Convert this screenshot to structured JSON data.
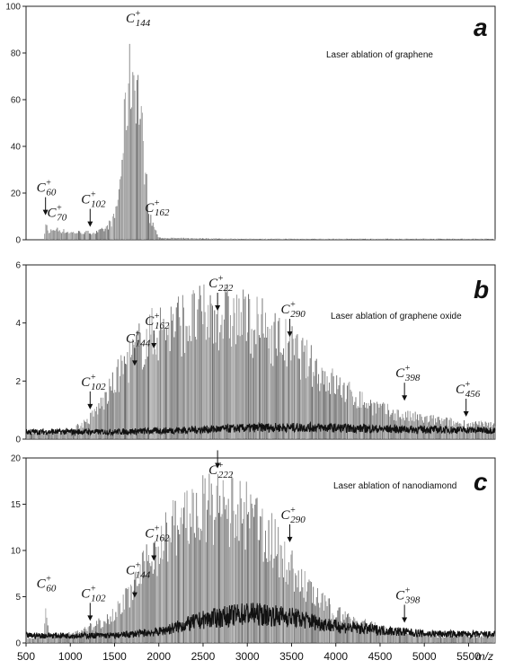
{
  "chart_data": [
    {
      "type": "bar",
      "panel_letter": "a",
      "caption": "Laser ablation of graphene",
      "ylim": [
        0,
        100
      ],
      "yticks": [
        0,
        20,
        40,
        60,
        80,
        100
      ],
      "xlim": [
        500,
        5800
      ],
      "envelope": {
        "x": [
          500,
          700,
          720,
          760,
          800,
          1000,
          1200,
          1300,
          1400,
          1500,
          1560,
          1600,
          1650,
          1700,
          1750,
          1800,
          1850,
          1900,
          1940,
          2000,
          3000,
          5800
        ],
        "y": [
          0,
          0,
          9,
          3,
          6,
          4,
          4,
          4,
          6,
          12,
          30,
          55,
          82,
          92,
          88,
          65,
          35,
          12,
          8,
          1,
          0.5,
          0.5
        ]
      },
      "annotations": [
        {
          "main": "C",
          "sup": "+",
          "sub": "60",
          "x": 720,
          "y": 9,
          "arrow": true
        },
        {
          "main": "C",
          "sup": "+",
          "sub": "70",
          "x": 840,
          "y": 6,
          "arrow": false
        },
        {
          "main": "C",
          "sup": "+",
          "sub": "102",
          "x": 1224,
          "y": 4,
          "arrow": true
        },
        {
          "main": "C",
          "sup": "+",
          "sub": "144",
          "x": 1728,
          "y": 92,
          "arrow": false
        },
        {
          "main": "C",
          "sup": "+",
          "sub": "162",
          "x": 1944,
          "y": 8,
          "arrow": false
        }
      ]
    },
    {
      "type": "bar",
      "panel_letter": "b",
      "caption": "Laser ablation of graphene oxide",
      "ylim": [
        0,
        6
      ],
      "yticks": [
        0,
        2,
        4,
        6
      ],
      "xlim": [
        500,
        5800
      ],
      "envelope": {
        "x": [
          500,
          1000,
          1200,
          1400,
          1600,
          1800,
          2000,
          2200,
          2400,
          2600,
          2700,
          2800,
          3000,
          3200,
          3400,
          3600,
          3800,
          4000,
          4200,
          4400,
          4600,
          4800,
          5000,
          5200,
          5400,
          5800
        ],
        "y": [
          0.3,
          0.4,
          0.8,
          1.8,
          3.2,
          4.2,
          4.8,
          5.1,
          5.3,
          5.4,
          5.5,
          5.4,
          5.2,
          4.8,
          4.3,
          3.7,
          3.0,
          2.4,
          1.9,
          1.5,
          1.2,
          1.0,
          0.9,
          0.8,
          0.7,
          0.6
        ]
      },
      "baseline": {
        "x": [
          500,
          1500,
          2200,
          2700,
          3200,
          3800,
          4500,
          5800
        ],
        "y": [
          0.25,
          0.25,
          0.3,
          0.35,
          0.4,
          0.4,
          0.35,
          0.3
        ]
      },
      "annotations": [
        {
          "main": "C",
          "sup": "+",
          "sub": "102",
          "x": 1224,
          "y": 0.9,
          "arrow": true
        },
        {
          "main": "C",
          "sup": "+",
          "sub": "144",
          "x": 1728,
          "y": 2.4,
          "arrow": true
        },
        {
          "main": "C",
          "sup": "+",
          "sub": "162",
          "x": 1944,
          "y": 3.0,
          "arrow": true
        },
        {
          "main": "C",
          "sup": "+",
          "sub": "222",
          "x": 2664,
          "y": 4.3,
          "arrow": true
        },
        {
          "main": "C",
          "sup": "+",
          "sub": "290",
          "x": 3480,
          "y": 3.4,
          "arrow": true
        },
        {
          "main": "C",
          "sup": "+",
          "sub": "398",
          "x": 4776,
          "y": 1.2,
          "arrow": true
        },
        {
          "main": "C",
          "sup": "+",
          "sub": "456",
          "x": 5472,
          "y": 0.65,
          "arrow": true
        }
      ]
    },
    {
      "type": "bar",
      "panel_letter": "c",
      "caption": "Laser ablation of nanodiamond",
      "ylim": [
        0,
        20
      ],
      "yticks": [
        0,
        5,
        10,
        15,
        20
      ],
      "xlim": [
        500,
        5800
      ],
      "xticks": [
        "500",
        "1000",
        "1500",
        "2000",
        "2500",
        "3000",
        "3500",
        "4000",
        "4500",
        "5000",
        "5500"
      ],
      "xunit": "m/z",
      "envelope": {
        "x": [
          500,
          700,
          720,
          760,
          1000,
          1200,
          1400,
          1600,
          1800,
          2000,
          2200,
          2400,
          2600,
          2700,
          2800,
          2900,
          3000,
          3200,
          3400,
          3600,
          3800,
          4000,
          4200,
          4400,
          4600,
          4800,
          5000,
          5200,
          5800
        ],
        "y": [
          0.8,
          0.8,
          5,
          1,
          1.2,
          2,
          3.2,
          5.5,
          9.5,
          13.5,
          16.5,
          18,
          18.5,
          18.6,
          18.5,
          18,
          17.5,
          15.5,
          12,
          8.5,
          6,
          4.2,
          3.2,
          2.4,
          1.8,
          1.4,
          1.2,
          1.0,
          0.9
        ]
      },
      "baseline": {
        "x": [
          500,
          1500,
          2000,
          2500,
          3000,
          3500,
          4000,
          5000,
          5800
        ],
        "y": [
          0.8,
          0.8,
          1.2,
          2.5,
          3.2,
          2.8,
          1.8,
          1.0,
          0.9
        ]
      },
      "annotations": [
        {
          "main": "C",
          "sup": "+",
          "sub": "60",
          "x": 720,
          "y": 5,
          "arrow": false
        },
        {
          "main": "C",
          "sup": "+",
          "sub": "102",
          "x": 1224,
          "y": 2.0,
          "arrow": true
        },
        {
          "main": "C",
          "sup": "+",
          "sub": "144",
          "x": 1728,
          "y": 4.5,
          "arrow": true
        },
        {
          "main": "C",
          "sup": "+",
          "sub": "162",
          "x": 1944,
          "y": 8.5,
          "arrow": true
        },
        {
          "main": "C",
          "sup": "+",
          "sub": "222",
          "x": 2664,
          "y": 18.5,
          "arrow": true
        },
        {
          "main": "C",
          "sup": "+",
          "sub": "290",
          "x": 3480,
          "y": 10.5,
          "arrow": true
        },
        {
          "main": "C",
          "sup": "+",
          "sub": "398",
          "x": 4776,
          "y": 1.8,
          "arrow": true
        }
      ]
    }
  ]
}
